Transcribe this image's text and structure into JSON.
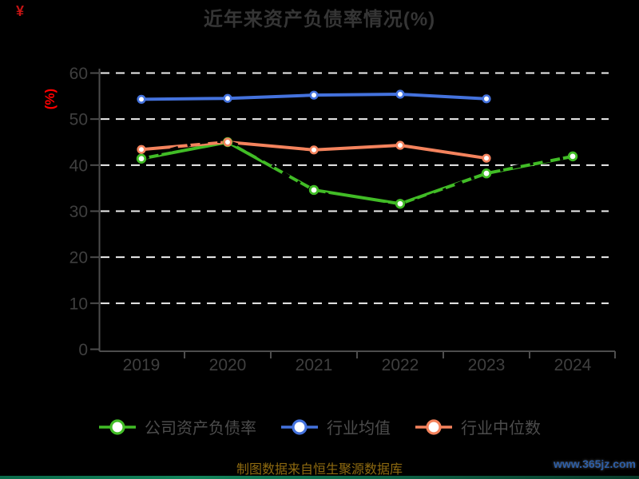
{
  "page": {
    "title": "近年来资产负债率情况(%)",
    "corner_mark": "¥",
    "source_note": "制图数据来自恒生聚源数据库",
    "watermark": "www.365jz.com"
  },
  "chart_data": {
    "type": "line",
    "title": "近年来资产负债率情况(%)",
    "ylabel": "(%)",
    "ylabel_color": "#ff0000",
    "categories": [
      "2019",
      "2020",
      "2021",
      "2022",
      "2023",
      "2024"
    ],
    "ylim": [
      0,
      60
    ],
    "ytick_step": 10,
    "yticks": [
      0,
      10,
      20,
      30,
      40,
      50,
      60
    ],
    "grid": "horizontal white dashed lines on black background",
    "legend_position": "bottom-center",
    "series": [
      {
        "name": "公司资产负债率",
        "color": "#41bc26",
        "values": [
          41.4,
          45.0,
          34.6,
          31.6,
          38.2,
          41.9
        ],
        "line_style": "solid with black dash-dot smoothed spline overlay",
        "marker": "circle, white fill, green ring"
      },
      {
        "name": "行业均值",
        "color": "#4472dd",
        "values": [
          54.3,
          54.5,
          55.2,
          55.4,
          54.4,
          null
        ],
        "line_style": "solid",
        "marker": "circle, white fill, blue ring"
      },
      {
        "name": "行业中位数",
        "color": "#f4835d",
        "values": [
          43.4,
          45.0,
          43.3,
          44.3,
          41.5,
          null
        ],
        "line_style": "solid",
        "marker": "circle, white fill, orange ring"
      }
    ],
    "axis_color": "#4d4d4d",
    "tick_label_color": "#3f3f3f",
    "grid_color": "#eeeeee"
  }
}
